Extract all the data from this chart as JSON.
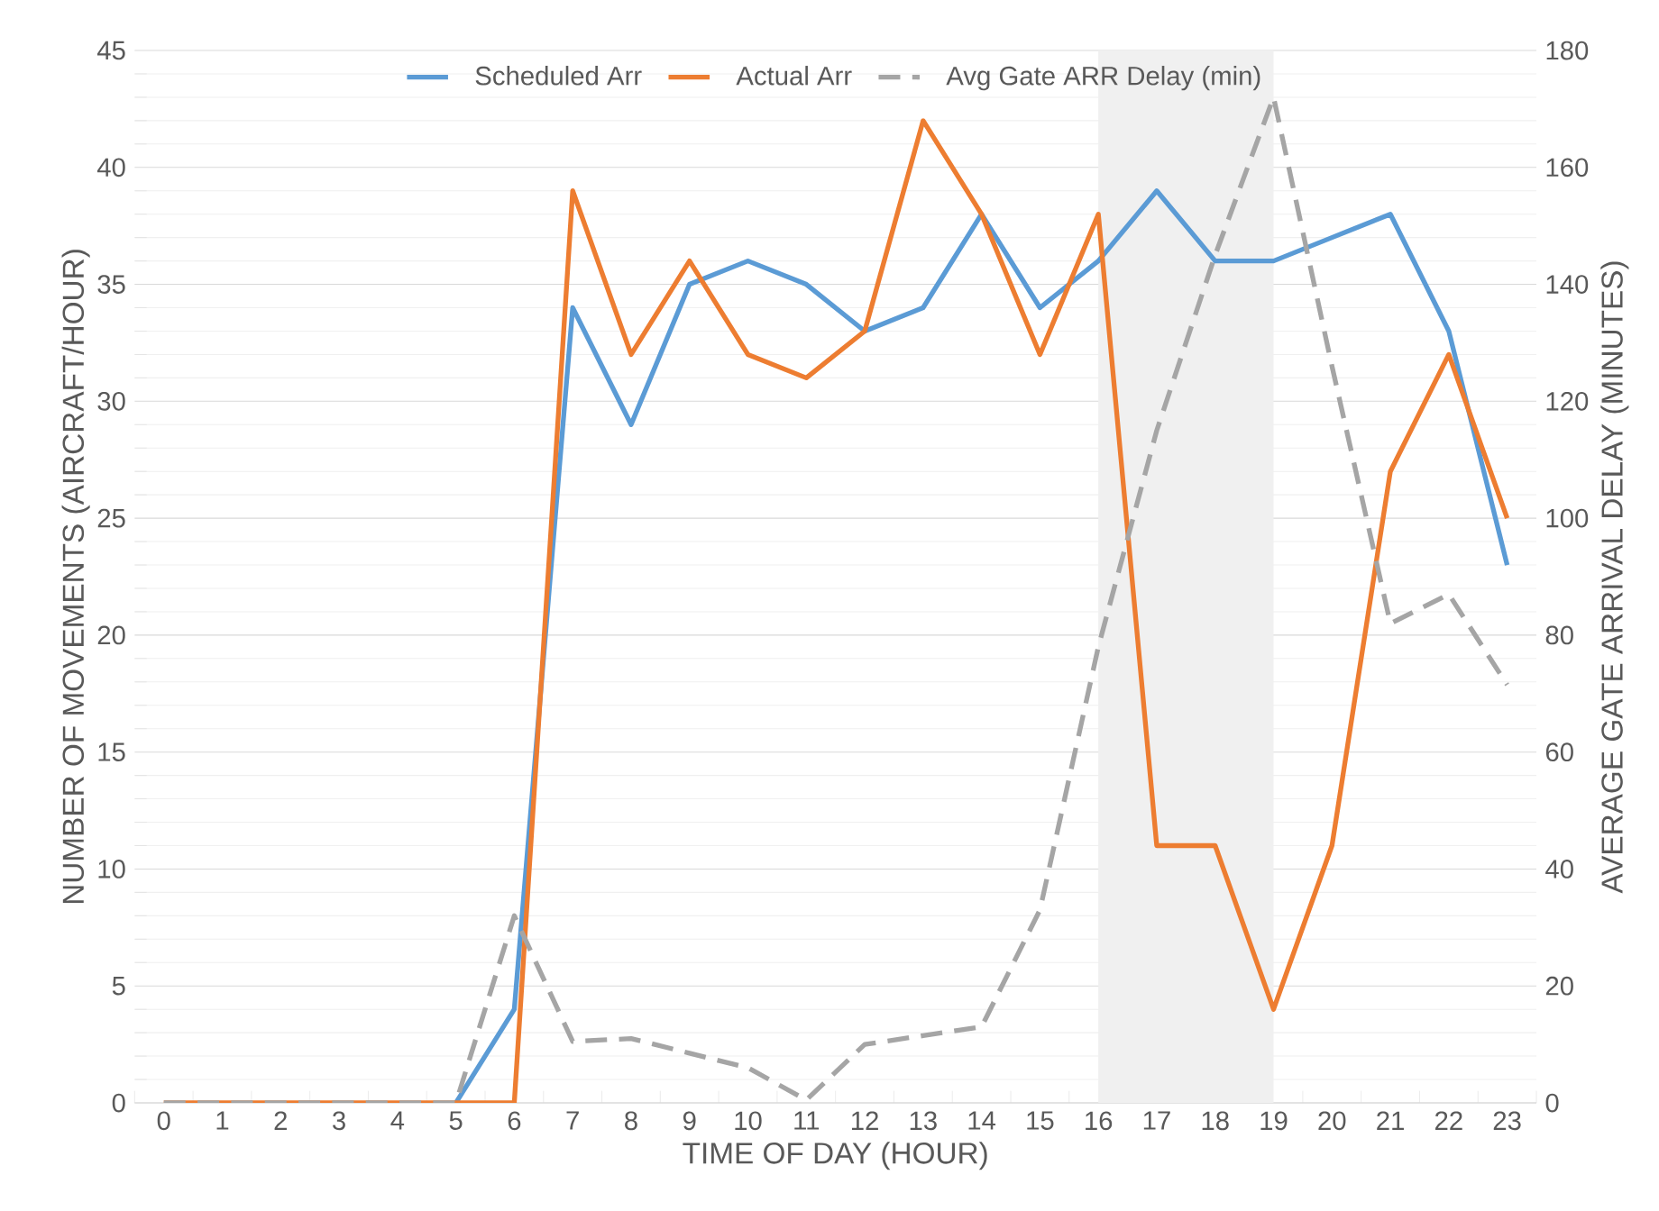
{
  "chart_data": {
    "type": "line",
    "xlabel": "TIME OF DAY (HOUR)",
    "ylabel": "NUMBER OF MOVEMENTS (AIRCRAFT/HOUR)",
    "y2label": "AVERAGE GATE ARRIVAL DELAY (MINUTES)",
    "x": [
      0,
      1,
      2,
      3,
      4,
      5,
      6,
      7,
      8,
      9,
      10,
      11,
      12,
      13,
      14,
      15,
      16,
      17,
      18,
      19,
      20,
      21,
      22,
      23
    ],
    "xlim": [
      -0.5,
      23.5
    ],
    "xticks": [
      0,
      1,
      2,
      3,
      4,
      5,
      6,
      7,
      8,
      9,
      10,
      11,
      12,
      13,
      14,
      15,
      16,
      17,
      18,
      19,
      20,
      21,
      22,
      23
    ],
    "ylim": [
      0,
      45
    ],
    "yticks": [
      0,
      5,
      10,
      15,
      20,
      25,
      30,
      35,
      40,
      45
    ],
    "y2lim": [
      0,
      180
    ],
    "y2ticks": [
      0,
      20,
      40,
      60,
      80,
      100,
      120,
      140,
      160,
      180
    ],
    "grid": "y",
    "legend": "top",
    "marker": "none",
    "bands": [
      {
        "axis": "x",
        "from": 16,
        "to": 19,
        "color": "#f0f0f0"
      }
    ],
    "series": [
      {
        "name": "Scheduled Arr",
        "color": "#5b9bd5",
        "line_style": "solid",
        "values": [
          null,
          null,
          null,
          null,
          null,
          0,
          4,
          34,
          29,
          35,
          36,
          35,
          33,
          34,
          38,
          34,
          36,
          39,
          36,
          36,
          37,
          38,
          33,
          23
        ]
      },
      {
        "name": "Actual Arr",
        "color": "#ed7d31",
        "line_style": "solid",
        "values": [
          0,
          0,
          0,
          0,
          0,
          0,
          0,
          39,
          32,
          36,
          32,
          31,
          33,
          42,
          38,
          32,
          38,
          11,
          11,
          4,
          11,
          27,
          32,
          25
        ]
      },
      {
        "name": "Avg Gate ARR Delay (min)",
        "color": "#a5a5a5",
        "line_style": "dashed",
        "axis": "y2",
        "values": [
          0,
          0,
          0,
          0,
          0,
          0,
          32,
          10.5,
          11,
          8.5,
          6,
          0.5,
          10,
          11.5,
          13,
          33,
          78,
          115,
          145,
          172,
          126,
          82,
          87,
          71.5
        ]
      }
    ]
  }
}
